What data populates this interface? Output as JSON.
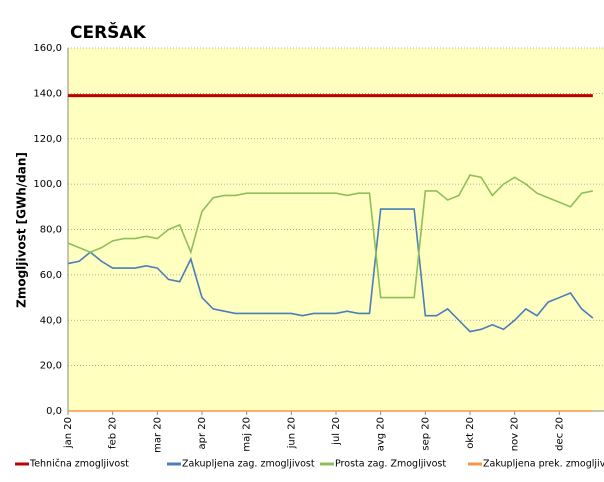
{
  "chart_data": {
    "type": "line",
    "title": "CERŠAK",
    "y_label": "Zmogljivost [GWh/dan]",
    "categories": [
      "jan 20",
      null,
      null,
      null,
      "feb 20",
      null,
      null,
      null,
      "mar 20",
      null,
      null,
      null,
      "apr 20",
      null,
      null,
      null,
      "maj 20",
      null,
      null,
      null,
      "jun 20",
      null,
      null,
      null,
      "jul 20",
      null,
      null,
      null,
      "avg 20",
      null,
      null,
      null,
      "sep 20",
      null,
      null,
      null,
      "okt 20",
      null,
      null,
      null,
      "nov 20",
      null,
      null,
      null,
      "dec 20",
      null,
      null,
      null
    ],
    "series": [
      {
        "name": "Tehnična zmogljivost",
        "color": "#c00000",
        "values": [
          139,
          139,
          139,
          139,
          139,
          139,
          139,
          139,
          139,
          139,
          139,
          139,
          139,
          139,
          139,
          139,
          139,
          139,
          139,
          139,
          139,
          139,
          139,
          139,
          139,
          139,
          139,
          139,
          139,
          139,
          139,
          139,
          139,
          139,
          139,
          139,
          139,
          139,
          139,
          139,
          139,
          139,
          139,
          139,
          139,
          139,
          139,
          139
        ]
      },
      {
        "name": "Zakupljena zag. zmogljivost",
        "color": "#4a7ebb",
        "values": [
          65,
          66,
          70,
          66,
          63,
          63,
          63,
          64,
          63,
          58,
          57,
          67,
          50,
          45,
          44,
          43,
          43,
          43,
          43,
          43,
          43,
          42,
          43,
          43,
          43,
          44,
          43,
          43,
          89,
          89,
          89,
          89,
          42,
          42,
          45,
          40,
          35,
          36,
          38,
          36,
          40,
          45,
          42,
          48,
          50,
          52,
          45,
          41
        ]
      },
      {
        "name": "Prosta zag. Zmogljivost",
        "color": "#8cc05a",
        "values": [
          74,
          72,
          70,
          72,
          75,
          76,
          76,
          77,
          76,
          80,
          82,
          70,
          88,
          94,
          95,
          95,
          96,
          96,
          96,
          96,
          96,
          96,
          96,
          96,
          96,
          95,
          96,
          96,
          50,
          50,
          50,
          50,
          97,
          97,
          93,
          95,
          104,
          103,
          95,
          100,
          103,
          100,
          96,
          94,
          92,
          90,
          96,
          97
        ]
      },
      {
        "name": "Zakupljena prek. zmogljivost",
        "color": "#f79646",
        "values": [
          0,
          0,
          0,
          0,
          0,
          0,
          0,
          0,
          0,
          0,
          0,
          0,
          0,
          0,
          0,
          0,
          0,
          0,
          0,
          0,
          0,
          0,
          0,
          0,
          0,
          0,
          0,
          0,
          0,
          0,
          0,
          0,
          0,
          0,
          0,
          0,
          0,
          0,
          0,
          0,
          0,
          0,
          0,
          0,
          0,
          0,
          0,
          0
        ]
      }
    ],
    "ylim": [
      0,
      160
    ],
    "yticks": [
      {
        "value": 0,
        "label": "0,0"
      },
      {
        "value": 20,
        "label": "20,0"
      },
      {
        "value": 40,
        "label": "40,0"
      },
      {
        "value": 60,
        "label": "60,0"
      },
      {
        "value": 80,
        "label": "80,0"
      },
      {
        "value": 100,
        "label": "100,0"
      },
      {
        "value": 120,
        "label": "120,0"
      },
      {
        "value": 140,
        "label": "140,0"
      },
      {
        "value": 160,
        "label": "160,0"
      }
    ],
    "grid": true,
    "legend": "bottom"
  }
}
